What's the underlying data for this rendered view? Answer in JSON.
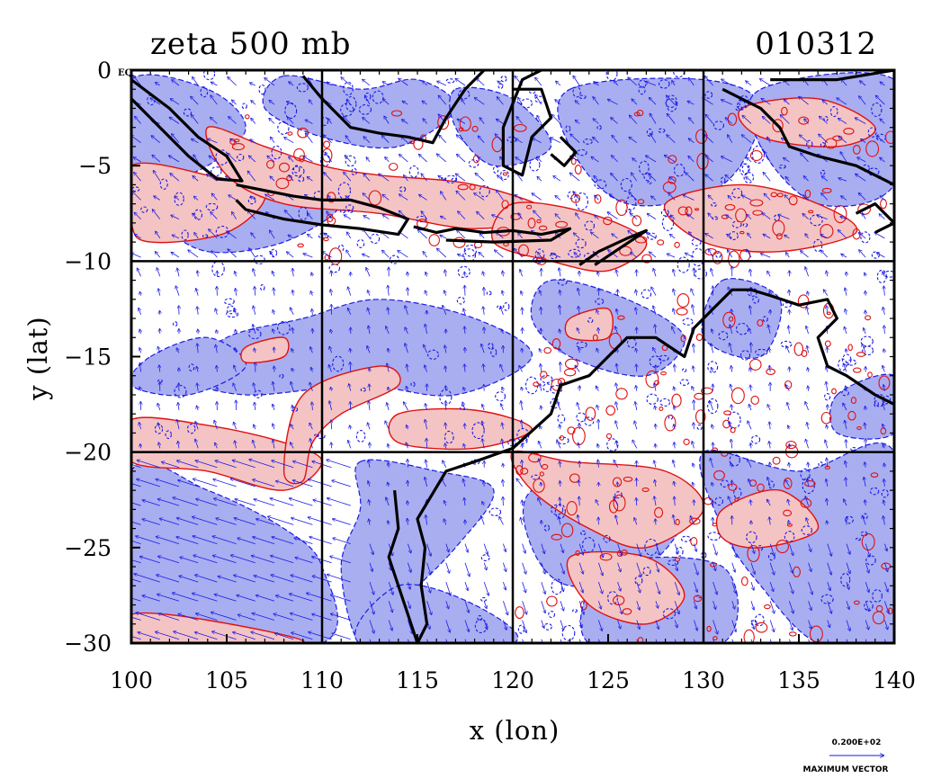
{
  "chart_data": {
    "type": "contour",
    "title": "zeta 500 mb",
    "date_label": "010312",
    "xlabel": "x (lon)",
    "ylabel": "y (lat)",
    "xlim": [
      100,
      140
    ],
    "ylim": [
      -30,
      0
    ],
    "x_ticks": [
      100,
      105,
      110,
      115,
      120,
      125,
      130,
      135,
      140
    ],
    "x_tick_labels": [
      "100",
      "105",
      "110",
      "115",
      "120",
      "125",
      "130",
      "135",
      "140"
    ],
    "y_ticks": [
      0,
      -5,
      -10,
      -15,
      -20,
      -25,
      -30
    ],
    "y_tick_labels": [
      "0",
      "−5",
      "−10",
      "−15",
      "−20",
      "−25",
      "−30"
    ],
    "corner_label": "EQ",
    "grid_lines_x": [
      110,
      120,
      130
    ],
    "grid_lines_y": [
      -10,
      -20
    ],
    "grid": true,
    "legend": {
      "position": "bottom-right",
      "vector_value": "0.200E+02",
      "vector_label": "MAXIMUM VECTOR"
    },
    "series": [
      {
        "name": "",
        "kind": "positive-vorticity-fill",
        "color": "#f4c4c4",
        "contour_color": "#e01010"
      },
      {
        "name": "",
        "kind": "negative-vorticity-fill",
        "color": "#a9aef0",
        "contour_color": "#1a1ae6"
      },
      {
        "name": "",
        "kind": "wind-vectors",
        "color": "#1a1ae6"
      },
      {
        "name": "",
        "kind": "coastline",
        "color": "#000000"
      }
    ]
  }
}
